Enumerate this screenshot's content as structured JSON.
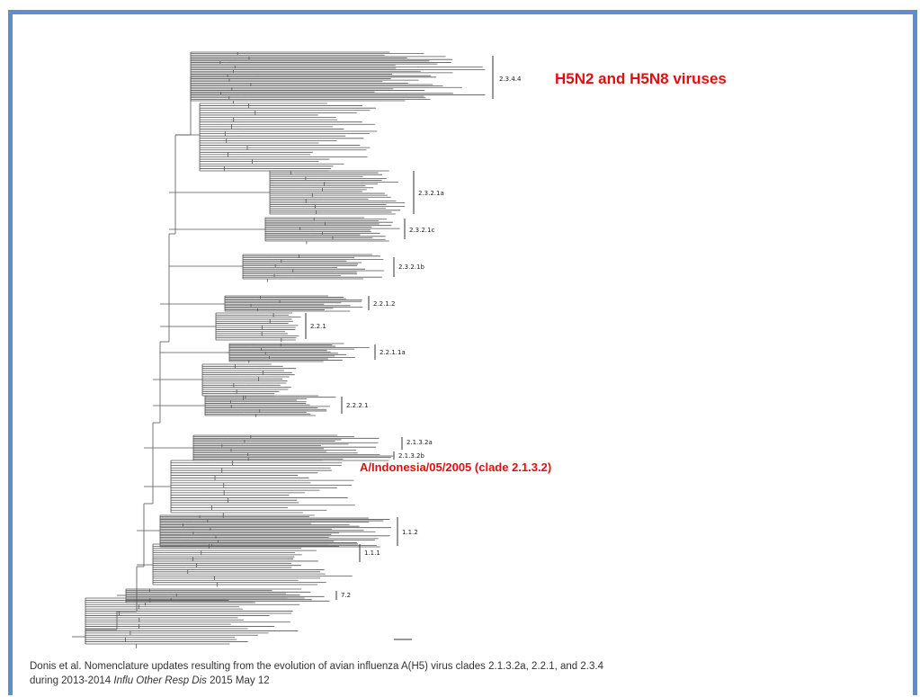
{
  "figure": {
    "clade_labels": {
      "c234": "2.3.4.4",
      "c2321a": "2.3.2.1a",
      "c2321c": "2.3.2.1c",
      "c2321b": "2.3.2.1b",
      "c2212": "2.2.1.2",
      "c221": "2.2.1",
      "c2211a": "2.2.1.1a",
      "c2221": "2.2.2.1",
      "c2132a": "2.1.3.2a",
      "c2132b": "2.1.3.2b",
      "c112": "1.1.2",
      "c111": "1.1.1",
      "c72": "7.2"
    },
    "highlights": {
      "h5n": "H5N2 and H5N8 viruses",
      "indonesia": "A/Indonesia/05/2005 (clade 2.1.3.2)"
    },
    "caption": {
      "line1": "Donis et al. Nomenclature updates resulting from the evolution of avian influenza A(H5) virus clades 2.1.3.2a, 2.2.1, and 2.3.4",
      "line2_prefix": "during 2013-2014",
      "journal": "Influ Other Resp Dis",
      "line2_suffix": "2015 May 12"
    },
    "colors": {
      "border": "#5b8fcf",
      "highlight": "#e01010",
      "tree": "#555555"
    }
  }
}
